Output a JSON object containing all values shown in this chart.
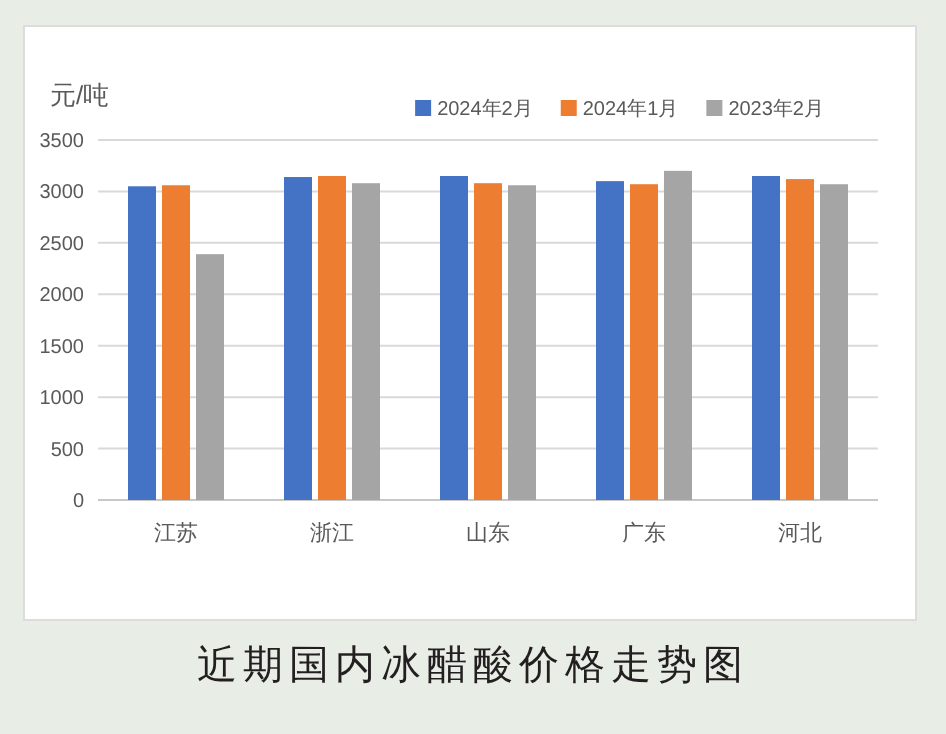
{
  "chart_data": {
    "type": "bar",
    "title": "近期国内冰醋酸价格走势图",
    "ylabel": "元/吨",
    "categories": [
      "江苏",
      "浙江",
      "山东",
      "广东",
      "河北"
    ],
    "series": [
      {
        "name": "2024年2月",
        "color": "#4472c4",
        "values": [
          3050,
          3140,
          3150,
          3100,
          3150
        ]
      },
      {
        "name": "2024年1月",
        "color": "#ed7d31",
        "values": [
          3060,
          3150,
          3080,
          3070,
          3120
        ]
      },
      {
        "name": "2023年2月",
        "color": "#a5a5a5",
        "values": [
          2390,
          3080,
          3060,
          3200,
          3070
        ]
      }
    ],
    "ylim": [
      0,
      3500
    ],
    "yticks": [
      0,
      500,
      1000,
      1500,
      2000,
      2500,
      3000,
      3500
    ],
    "grid": "y",
    "legend": "top right"
  }
}
